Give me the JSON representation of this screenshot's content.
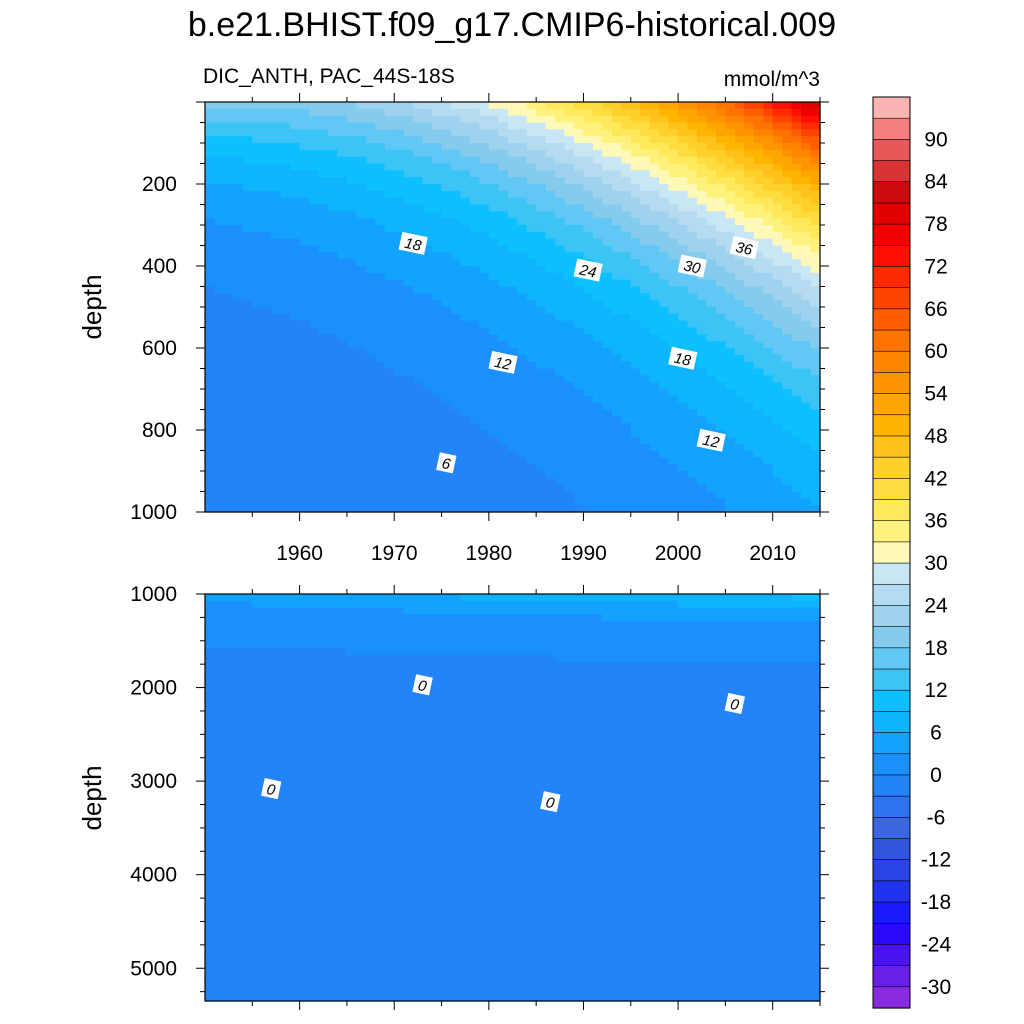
{
  "title": "b.e21.BHIST.f09_g17.CMIP6-historical.009",
  "chart_data": [
    {
      "type": "contour",
      "left_string": "DIC_ANTH, PAC_44S-18S",
      "right_string": "mmol/m^3",
      "ylabel": "depth",
      "xlim": [
        1950,
        2015
      ],
      "ylim": [
        1000,
        0
      ],
      "x_ticks": [
        1960,
        1970,
        1980,
        1990,
        2000,
        2010
      ],
      "y_ticks": [
        200,
        400,
        600,
        800,
        1000
      ],
      "contour_labels": [
        {
          "text": "18",
          "x": 1972,
          "y": 345
        },
        {
          "text": "24",
          "x": 1990.5,
          "y": 410
        },
        {
          "text": "30",
          "x": 2001.5,
          "y": 400
        },
        {
          "text": "36",
          "x": 2007,
          "y": 355
        },
        {
          "text": "12",
          "x": 1981.5,
          "y": 635
        },
        {
          "text": "18",
          "x": 2000.5,
          "y": 625
        },
        {
          "text": "12",
          "x": 2003.5,
          "y": 825
        },
        {
          "text": "6",
          "x": 1975.5,
          "y": 880
        }
      ]
    },
    {
      "type": "contour",
      "ylabel": "depth",
      "xlim": [
        1950,
        2015
      ],
      "ylim": [
        5350,
        1000
      ],
      "y_ticks": [
        1000,
        2000,
        3000,
        4000,
        5000
      ],
      "contour_labels": [
        {
          "text": "0",
          "x": 1973,
          "y": 1970
        },
        {
          "text": "0",
          "x": 2006,
          "y": 2170
        },
        {
          "text": "0",
          "x": 1957,
          "y": 3080
        },
        {
          "text": "0",
          "x": 1986.5,
          "y": 3220
        }
      ]
    }
  ],
  "colorbar": {
    "levels": [
      -33,
      -30,
      -27,
      -24,
      -21,
      -18,
      -15,
      -12,
      -9,
      -6,
      -3,
      0,
      3,
      6,
      9,
      12,
      15,
      18,
      21,
      24,
      27,
      30,
      33,
      36,
      39,
      42,
      45,
      48,
      51,
      54,
      57,
      60,
      63,
      66,
      69,
      72,
      75,
      78,
      81,
      84,
      87,
      90,
      93
    ],
    "colors": [
      "#8a2be2",
      "#6a1fe8",
      "#4a14f0",
      "#2a0af8",
      "#1a1aff",
      "#2233ee",
      "#2a44e6",
      "#3055dd",
      "#3a66e0",
      "#2c73f0",
      "#2284f8",
      "#1a90ff",
      "#14a2ff",
      "#0fb4ff",
      "#0dc0ff",
      "#3cc4f7",
      "#61c7f4",
      "#85cbee",
      "#9fd2ef",
      "#b4dbf0",
      "#c8e6f4",
      "#fff9b8",
      "#fff27c",
      "#ffe95a",
      "#ffdd40",
      "#ffd02a",
      "#ffc21a",
      "#ffb400",
      "#ffa500",
      "#ff9400",
      "#ff8400",
      "#ff7300",
      "#ff5d00",
      "#ff4400",
      "#ff2a00",
      "#ff0f00",
      "#f00000",
      "#e00000",
      "#cc0c0c",
      "#d83232",
      "#e85858",
      "#f27e7e",
      "#fbb4b4"
    ],
    "labels": [
      "90",
      "84",
      "78",
      "72",
      "66",
      "60",
      "54",
      "48",
      "42",
      "36",
      "30",
      "24",
      "18",
      "12",
      "6",
      "0",
      "-6",
      "-12",
      "-18",
      "-24",
      "-30"
    ]
  }
}
